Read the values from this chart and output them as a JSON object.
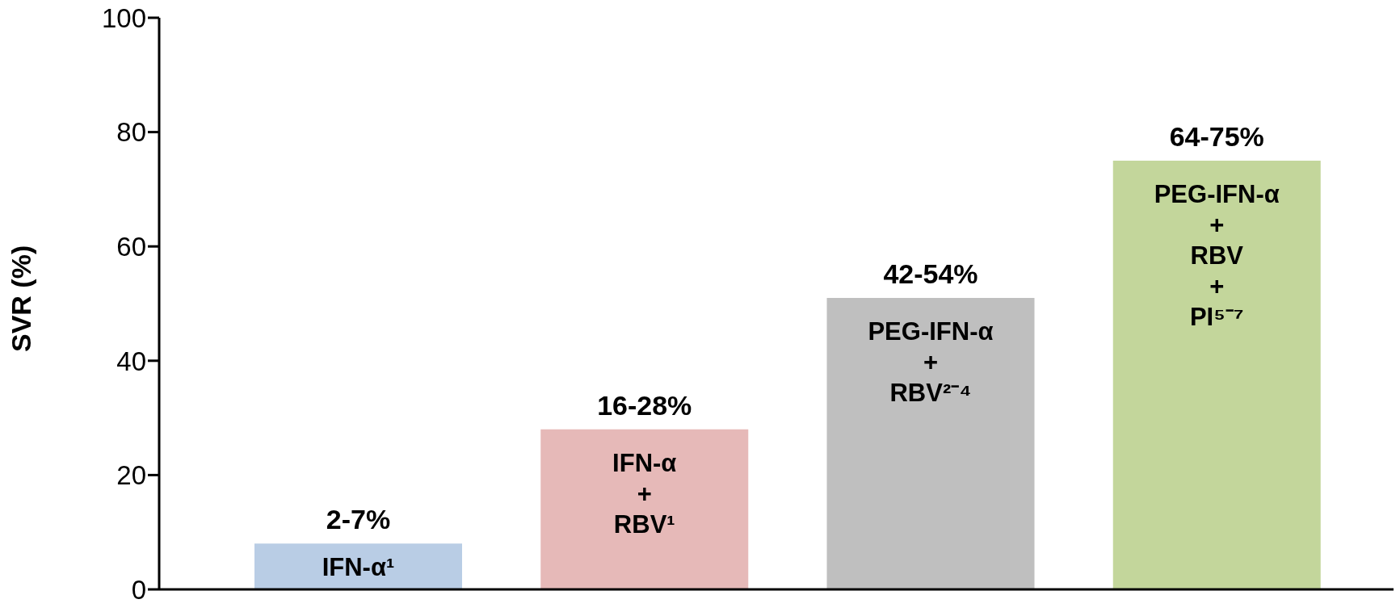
{
  "chart_data": {
    "type": "bar",
    "ylabel": "SVR (%)",
    "categories": [
      "IFN-α¹",
      "IFN-α\n+\nRBV¹",
      "PEG-IFN-α\n+\nRBV²⁻⁴",
      "PEG-IFN-α\n+\nRBV\n+\nPI⁵⁻⁷"
    ],
    "values": [
      8,
      28,
      51,
      75
    ],
    "colors": [
      "#b9cde5",
      "#e6b9b8",
      "#bfbfbf",
      "#c3d69b"
    ],
    "annotations": [
      {
        "text": "2-7%",
        "x": "IFN-α¹",
        "y": 8
      },
      {
        "text": "16-28%",
        "x": "IFN-α\n+\nRBV¹",
        "y": 28
      },
      {
        "text": "42-54%",
        "x": "PEG-IFN-α\n+\nRBV²⁻⁴",
        "y": 51
      },
      {
        "text": "64-75%",
        "x": "PEG-IFN-α\n+\nRBV\n+\nPI⁵⁻⁷",
        "y": 75
      }
    ],
    "ylim": [
      0,
      100
    ],
    "yticks": [
      0,
      20,
      40,
      60,
      80,
      100
    ],
    "grid": false
  }
}
